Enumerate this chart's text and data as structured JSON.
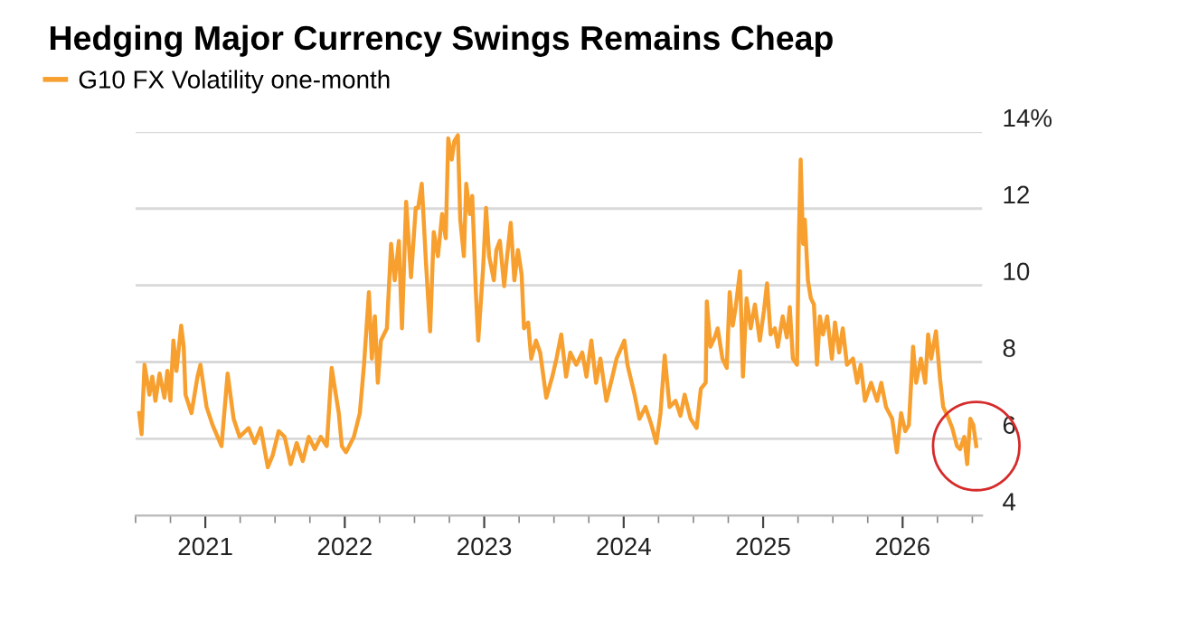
{
  "chart_data": {
    "type": "line",
    "title": "Hedging Major Currency Swings Remains Cheap",
    "xlim": [
      2020.5,
      2026.57
    ],
    "xticks": [
      {
        "value": 2021,
        "label": "2021"
      },
      {
        "value": 2022,
        "label": "2022"
      },
      {
        "value": 2023,
        "label": "2023"
      },
      {
        "value": 2024,
        "label": "2024"
      },
      {
        "value": 2025,
        "label": "2025"
      },
      {
        "value": 2026,
        "label": "2026"
      }
    ],
    "ylim": [
      4,
      14
    ],
    "yticks": [
      4,
      6,
      8,
      10,
      12,
      {
        "value": 14,
        "label": "14%"
      }
    ],
    "grid": "y",
    "legend": "top left",
    "series": [
      {
        "name": "G10 FX Volatility one-month",
        "color": "#f7a030",
        "x": [
          2020.526,
          2020.543,
          2020.564,
          2020.599,
          2020.62,
          2020.642,
          2020.672,
          2020.707,
          2020.728,
          2020.75,
          2020.771,
          2020.793,
          2020.827,
          2020.845,
          2020.858,
          2020.901,
          2020.944,
          2020.965,
          2021.009,
          2021.052,
          2021.116,
          2021.16,
          2021.203,
          2021.246,
          2021.31,
          2021.354,
          2021.397,
          2021.448,
          2021.483,
          2021.526,
          2021.569,
          2021.612,
          2021.655,
          2021.699,
          2021.742,
          2021.785,
          2021.828,
          2021.871,
          2021.906,
          2021.936,
          2021.957,
          2021.979,
          2022.009,
          2022.065,
          2022.108,
          2022.138,
          2022.173,
          2022.194,
          2022.216,
          2022.237,
          2022.259,
          2022.302,
          2022.332,
          2022.358,
          2022.388,
          2022.41,
          2022.44,
          2022.475,
          2022.509,
          2022.526,
          2022.552,
          2022.582,
          2022.612,
          2022.638,
          2022.668,
          2022.698,
          2022.724,
          2022.742,
          2022.767,
          2022.785,
          2022.811,
          2022.828,
          2022.854,
          2022.871,
          2022.897,
          2022.914,
          2022.94,
          2022.957,
          2022.992,
          2023.013,
          2023.035,
          2023.069,
          2023.087,
          2023.112,
          2023.143,
          2023.164,
          2023.19,
          2023.216,
          2023.242,
          2023.268,
          2023.285,
          2023.315,
          2023.337,
          2023.371,
          2023.401,
          2023.445,
          2023.488,
          2023.518,
          2023.552,
          2023.587,
          2023.617,
          2023.66,
          2023.703,
          2023.733,
          2023.768,
          2023.802,
          2023.833,
          2023.876,
          2023.919,
          2023.949,
          2024.005,
          2024.027,
          2024.078,
          2024.113,
          2024.156,
          2024.199,
          2024.234,
          2024.264,
          2024.294,
          2024.329,
          2024.372,
          2024.407,
          2024.437,
          2024.48,
          2024.523,
          2024.553,
          2024.588,
          2024.596,
          2024.622,
          2024.652,
          2024.674,
          2024.708,
          2024.739,
          2024.76,
          2024.782,
          2024.803,
          2024.834,
          2024.855,
          2024.881,
          2024.911,
          2024.941,
          2024.976,
          2025.006,
          2025.028,
          2025.053,
          2025.084,
          2025.105,
          2025.14,
          2025.17,
          2025.191,
          2025.213,
          2025.243,
          2025.256,
          2025.269,
          2025.286,
          2025.299,
          2025.321,
          2025.342,
          2025.364,
          2025.386,
          2025.407,
          2025.429,
          2025.459,
          2025.493,
          2025.515,
          2025.545,
          2025.571,
          2025.601,
          2025.644,
          2025.674,
          2025.7,
          2025.73,
          2025.774,
          2025.817,
          2025.847,
          2025.881,
          2025.925,
          2025.959,
          2025.989,
          2026.019,
          2026.045,
          2026.075,
          2026.097,
          2026.131,
          2026.162,
          2026.183,
          2026.205,
          2026.239,
          2026.269,
          2026.291,
          2026.321,
          2026.356,
          2026.39,
          2026.412,
          2026.442,
          2026.463,
          2026.485,
          2026.507,
          2026.528
        ],
        "values": [
          6.67,
          6.12,
          7.93,
          7.15,
          7.62,
          6.99,
          7.7,
          7.07,
          7.77,
          6.99,
          8.56,
          7.77,
          8.95,
          8.4,
          7.15,
          6.67,
          7.62,
          7.93,
          6.83,
          6.36,
          5.81,
          7.7,
          6.52,
          6.05,
          6.28,
          5.89,
          6.28,
          5.26,
          5.57,
          6.2,
          6.05,
          5.34,
          5.89,
          5.42,
          6.05,
          5.73,
          6.05,
          5.81,
          7.85,
          7.15,
          6.67,
          5.81,
          5.65,
          6.05,
          6.67,
          7.93,
          9.82,
          8.09,
          9.19,
          7.46,
          8.56,
          8.88,
          11.08,
          10.13,
          11.16,
          8.88,
          12.18,
          10.21,
          12.02,
          12.02,
          12.65,
          10.6,
          8.8,
          11.39,
          10.76,
          11.86,
          11.23,
          13.83,
          13.28,
          13.75,
          13.91,
          11.71,
          10.76,
          12.65,
          11.86,
          12.33,
          9.82,
          8.56,
          10.45,
          12.02,
          10.76,
          10.13,
          10.92,
          11.16,
          9.98,
          10.76,
          11.63,
          10.13,
          10.92,
          10.29,
          8.88,
          9.03,
          8.09,
          8.56,
          8.25,
          7.07,
          7.62,
          8.09,
          8.72,
          7.62,
          8.25,
          7.93,
          8.25,
          7.62,
          8.56,
          7.46,
          8.09,
          6.99,
          7.62,
          8.09,
          8.56,
          7.93,
          7.15,
          6.52,
          6.83,
          6.36,
          5.89,
          6.67,
          8.17,
          6.83,
          6.99,
          6.6,
          7.15,
          6.52,
          6.28,
          7.3,
          7.46,
          9.58,
          8.4,
          8.64,
          8.88,
          8.09,
          7.85,
          9.82,
          8.95,
          9.43,
          10.37,
          7.62,
          9.66,
          8.88,
          9.5,
          8.56,
          9.35,
          10.05,
          8.72,
          8.88,
          8.4,
          9.19,
          8.64,
          9.43,
          8.09,
          7.93,
          11.23,
          13.28,
          11.08,
          11.71,
          10.13,
          9.66,
          9.5,
          7.93,
          9.19,
          8.72,
          9.19,
          8.09,
          9.03,
          8.25,
          8.88,
          7.93,
          8.09,
          7.46,
          7.93,
          6.99,
          7.46,
          6.99,
          7.46,
          6.83,
          6.52,
          5.65,
          6.67,
          6.2,
          6.36,
          8.4,
          7.46,
          8.09,
          7.46,
          8.72,
          8.09,
          8.8,
          7.54,
          6.83,
          6.6,
          6.28,
          5.81,
          5.73,
          6.05,
          5.34,
          6.52,
          6.36,
          5.81
        ]
      }
    ]
  }
}
